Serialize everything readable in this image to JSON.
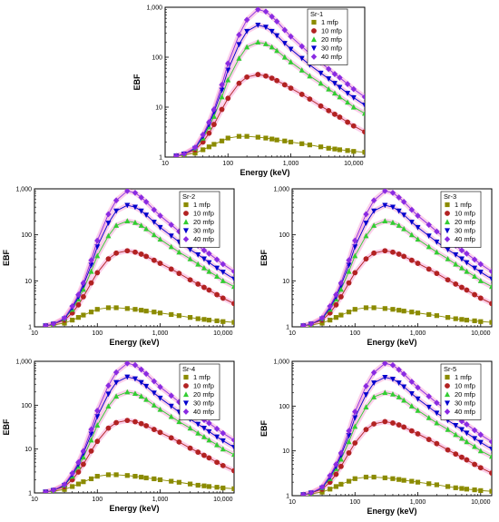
{
  "chart_data": [
    {
      "type": "line",
      "title": "Sr-1",
      "xlabel": "Energy (keV)",
      "ylabel": "EBF",
      "xscale": "log",
      "yscale": "log",
      "xlim": [
        10,
        15000
      ],
      "ylim": [
        1,
        1000
      ],
      "xticks": [
        "10",
        "100",
        "1,000",
        "10,000"
      ],
      "yticks": [
        "1",
        "10",
        "100",
        "1,000"
      ],
      "legend": "top-right",
      "x": [
        15,
        20,
        30,
        40,
        50,
        60,
        80,
        100,
        150,
        200,
        300,
        400,
        500,
        600,
        800,
        1000,
        1500,
        2000,
        3000,
        4000,
        5000,
        6000,
        8000,
        10000,
        15000
      ],
      "series": [
        {
          "name": "1 mfp",
          "color": "#8b8b00",
          "marker": "square",
          "values": [
            1.05,
            1.1,
            1.2,
            1.4,
            1.6,
            1.8,
            2.1,
            2.4,
            2.6,
            2.6,
            2.5,
            2.4,
            2.3,
            2.2,
            2.1,
            2.0,
            1.85,
            1.75,
            1.6,
            1.5,
            1.45,
            1.4,
            1.35,
            1.3,
            1.25
          ]
        },
        {
          "name": "10 mfp",
          "color": "#b22222",
          "marker": "circle",
          "values": [
            1.05,
            1.15,
            1.4,
            2.0,
            3.0,
            4.5,
            9.0,
            15,
            30,
            40,
            45,
            42,
            38,
            34,
            28,
            24,
            18,
            14.5,
            10.5,
            8.5,
            7.2,
            6.3,
            5.0,
            4.2,
            3.2
          ]
        },
        {
          "name": "20 mfp",
          "color": "#32cd32",
          "marker": "triangle-up",
          "values": [
            1.05,
            1.15,
            1.5,
            2.4,
            4.0,
            6.5,
            16,
            35,
            95,
            160,
            200,
            185,
            160,
            135,
            100,
            80,
            55,
            42,
            30,
            23,
            19,
            16,
            12.5,
            10,
            7.5
          ]
        },
        {
          "name": "30 mfp",
          "color": "#0000cd",
          "marker": "triangle-down",
          "values": [
            1.05,
            1.15,
            1.5,
            2.6,
            4.5,
            8.0,
            22,
            55,
            180,
            330,
            440,
            400,
            330,
            270,
            190,
            145,
            95,
            70,
            48,
            37,
            30,
            25,
            19,
            15.5,
            11
          ]
        },
        {
          "name": "40 mfp",
          "color": "#8a2be2",
          "marker": "diamond",
          "values": [
            1.05,
            1.15,
            1.55,
            2.8,
            5.0,
            9.0,
            28,
            75,
            280,
            560,
            900,
            820,
            650,
            520,
            350,
            260,
            165,
            118,
            78,
            58,
            46,
            39,
            29,
            23,
            16
          ]
        }
      ]
    },
    {
      "type": "line",
      "title": "Sr-2",
      "xlabel": "Energy (keV)",
      "ylabel": "EBF",
      "xscale": "log",
      "yscale": "log",
      "xlim": [
        10,
        15000
      ],
      "ylim": [
        1,
        1000
      ],
      "xticks": [
        "10",
        "100",
        "1,000",
        "10,000"
      ],
      "yticks": [
        "1",
        "10",
        "100",
        "1,000"
      ],
      "legend": "top-right",
      "x": [
        15,
        20,
        30,
        40,
        50,
        60,
        80,
        100,
        150,
        200,
        300,
        400,
        500,
        600,
        800,
        1000,
        1500,
        2000,
        3000,
        4000,
        5000,
        6000,
        8000,
        10000,
        15000
      ],
      "series": [
        {
          "name": "1 mfp",
          "color": "#8b8b00",
          "marker": "square",
          "values": [
            1.05,
            1.1,
            1.2,
            1.4,
            1.6,
            1.8,
            2.1,
            2.4,
            2.6,
            2.6,
            2.5,
            2.4,
            2.3,
            2.2,
            2.1,
            2.0,
            1.85,
            1.75,
            1.6,
            1.5,
            1.45,
            1.4,
            1.35,
            1.3,
            1.25
          ]
        },
        {
          "name": "10 mfp",
          "color": "#b22222",
          "marker": "circle",
          "values": [
            1.05,
            1.15,
            1.4,
            2.0,
            3.0,
            4.5,
            9.0,
            15,
            30,
            40,
            45,
            42,
            38,
            34,
            28,
            24,
            18,
            14.5,
            10.5,
            8.5,
            7.2,
            6.3,
            5.0,
            4.2,
            3.2
          ]
        },
        {
          "name": "20 mfp",
          "color": "#32cd32",
          "marker": "triangle-up",
          "values": [
            1.05,
            1.15,
            1.5,
            2.4,
            4.0,
            6.5,
            16,
            35,
            95,
            160,
            200,
            185,
            160,
            135,
            100,
            80,
            55,
            42,
            30,
            23,
            19,
            16,
            12.5,
            10,
            7.5
          ]
        },
        {
          "name": "30 mfp",
          "color": "#0000cd",
          "marker": "triangle-down",
          "values": [
            1.05,
            1.15,
            1.5,
            2.6,
            4.5,
            8.0,
            22,
            55,
            180,
            330,
            440,
            400,
            330,
            270,
            190,
            145,
            95,
            70,
            48,
            37,
            30,
            25,
            19,
            15.5,
            11
          ]
        },
        {
          "name": "40 mfp",
          "color": "#8a2be2",
          "marker": "diamond",
          "values": [
            1.05,
            1.15,
            1.55,
            2.8,
            5.0,
            9.0,
            28,
            75,
            280,
            560,
            900,
            820,
            650,
            520,
            350,
            260,
            165,
            118,
            78,
            58,
            46,
            39,
            29,
            23,
            16
          ]
        }
      ]
    },
    {
      "type": "line",
      "title": "Sr-3",
      "xlabel": "Energy (keV)",
      "ylabel": "EBF",
      "xscale": "log",
      "yscale": "log",
      "xlim": [
        10,
        15000
      ],
      "ylim": [
        1,
        1000
      ],
      "xticks": [
        "10",
        "100",
        "1,000",
        "10,000"
      ],
      "yticks": [
        "1",
        "10",
        "100",
        "1,000"
      ],
      "legend": "top-right",
      "x": [
        15,
        20,
        30,
        40,
        50,
        60,
        80,
        100,
        150,
        200,
        300,
        400,
        500,
        600,
        800,
        1000,
        1500,
        2000,
        3000,
        4000,
        5000,
        6000,
        8000,
        10000,
        15000
      ],
      "series": [
        {
          "name": "1 mfp",
          "color": "#8b8b00",
          "marker": "square",
          "values": [
            1.05,
            1.1,
            1.2,
            1.4,
            1.6,
            1.8,
            2.1,
            2.4,
            2.6,
            2.6,
            2.5,
            2.4,
            2.3,
            2.2,
            2.1,
            2.0,
            1.85,
            1.75,
            1.6,
            1.5,
            1.45,
            1.4,
            1.35,
            1.3,
            1.25
          ]
        },
        {
          "name": "10 mfp",
          "color": "#b22222",
          "marker": "circle",
          "values": [
            1.05,
            1.15,
            1.4,
            2.0,
            3.0,
            4.5,
            9.0,
            15,
            30,
            40,
            45,
            42,
            38,
            34,
            28,
            24,
            18,
            14.5,
            10.5,
            8.5,
            7.2,
            6.3,
            5.0,
            4.2,
            3.2
          ]
        },
        {
          "name": "20 mfp",
          "color": "#32cd32",
          "marker": "triangle-up",
          "values": [
            1.05,
            1.15,
            1.5,
            2.4,
            4.0,
            6.5,
            16,
            35,
            95,
            160,
            200,
            185,
            160,
            135,
            100,
            80,
            55,
            42,
            30,
            23,
            19,
            16,
            12.5,
            10,
            7.5
          ]
        },
        {
          "name": "30 mfp",
          "color": "#0000cd",
          "marker": "triangle-down",
          "values": [
            1.05,
            1.15,
            1.5,
            2.6,
            4.5,
            8.0,
            22,
            55,
            180,
            330,
            440,
            400,
            330,
            270,
            190,
            145,
            95,
            70,
            48,
            37,
            30,
            25,
            19,
            15.5,
            11
          ]
        },
        {
          "name": "40 mfp",
          "color": "#8a2be2",
          "marker": "diamond",
          "values": [
            1.05,
            1.15,
            1.55,
            2.8,
            5.0,
            9.0,
            28,
            75,
            280,
            560,
            900,
            820,
            650,
            520,
            350,
            260,
            165,
            118,
            78,
            58,
            46,
            39,
            29,
            23,
            16
          ]
        }
      ]
    },
    {
      "type": "line",
      "title": "Sr-4",
      "xlabel": "Energy (keV)",
      "ylabel": "EBF",
      "xscale": "log",
      "yscale": "log",
      "xlim": [
        10,
        15000
      ],
      "ylim": [
        1,
        1000
      ],
      "xticks": [
        "10",
        "100",
        "1,000",
        "10,000"
      ],
      "yticks": [
        "1",
        "10",
        "100",
        "1,000"
      ],
      "legend": "top-right",
      "x": [
        15,
        20,
        30,
        40,
        50,
        60,
        80,
        100,
        150,
        200,
        300,
        400,
        500,
        600,
        800,
        1000,
        1500,
        2000,
        3000,
        4000,
        5000,
        6000,
        8000,
        10000,
        15000
      ],
      "series": [
        {
          "name": "1 mfp",
          "color": "#8b8b00",
          "marker": "square",
          "values": [
            1.05,
            1.1,
            1.2,
            1.4,
            1.6,
            1.8,
            2.1,
            2.4,
            2.6,
            2.6,
            2.5,
            2.4,
            2.3,
            2.2,
            2.1,
            2.0,
            1.85,
            1.75,
            1.6,
            1.5,
            1.45,
            1.4,
            1.35,
            1.3,
            1.25
          ]
        },
        {
          "name": "10 mfp",
          "color": "#b22222",
          "marker": "circle",
          "values": [
            1.05,
            1.15,
            1.4,
            2.0,
            3.0,
            4.5,
            9.0,
            15,
            30,
            40,
            45,
            42,
            38,
            34,
            28,
            24,
            18,
            14.5,
            10.5,
            8.5,
            7.2,
            6.3,
            5.0,
            4.2,
            3.2
          ]
        },
        {
          "name": "20 mfp",
          "color": "#32cd32",
          "marker": "triangle-up",
          "values": [
            1.05,
            1.15,
            1.5,
            2.4,
            4.0,
            6.5,
            16,
            35,
            95,
            160,
            200,
            185,
            160,
            135,
            100,
            80,
            55,
            42,
            30,
            23,
            19,
            16,
            12.5,
            10,
            7.5
          ]
        },
        {
          "name": "30 mfp",
          "color": "#0000cd",
          "marker": "triangle-down",
          "values": [
            1.05,
            1.15,
            1.5,
            2.6,
            4.5,
            8.0,
            22,
            55,
            180,
            330,
            440,
            400,
            330,
            270,
            190,
            145,
            95,
            70,
            48,
            37,
            30,
            25,
            19,
            15.5,
            11
          ]
        },
        {
          "name": "40 mfp",
          "color": "#8a2be2",
          "marker": "diamond",
          "values": [
            1.05,
            1.15,
            1.55,
            2.8,
            5.0,
            9.0,
            28,
            75,
            280,
            560,
            900,
            820,
            650,
            520,
            350,
            260,
            165,
            118,
            78,
            58,
            46,
            39,
            29,
            23,
            16
          ]
        }
      ]
    },
    {
      "type": "line",
      "title": "Sr-5",
      "xlabel": "Energy (keV)",
      "ylabel": "EBF",
      "xscale": "log",
      "yscale": "log",
      "xlim": [
        10,
        15000
      ],
      "ylim": [
        1,
        1000
      ],
      "xticks": [
        "10",
        "100",
        "1,000",
        "10,000"
      ],
      "yticks": [
        "1",
        "10",
        "100",
        "1,000"
      ],
      "legend": "top-right",
      "x": [
        15,
        20,
        30,
        40,
        50,
        60,
        80,
        100,
        150,
        200,
        300,
        400,
        500,
        600,
        800,
        1000,
        1500,
        2000,
        3000,
        4000,
        5000,
        6000,
        8000,
        10000,
        15000
      ],
      "series": [
        {
          "name": "1 mfp",
          "color": "#8b8b00",
          "marker": "square",
          "values": [
            1.05,
            1.1,
            1.2,
            1.4,
            1.6,
            1.8,
            2.1,
            2.4,
            2.6,
            2.6,
            2.5,
            2.4,
            2.3,
            2.2,
            2.1,
            2.0,
            1.85,
            1.75,
            1.6,
            1.5,
            1.45,
            1.4,
            1.35,
            1.3,
            1.25
          ]
        },
        {
          "name": "10 mfp",
          "color": "#b22222",
          "marker": "circle",
          "values": [
            1.05,
            1.15,
            1.4,
            2.0,
            3.0,
            4.5,
            9.0,
            15,
            30,
            40,
            45,
            42,
            38,
            34,
            28,
            24,
            18,
            14.5,
            10.5,
            8.5,
            7.2,
            6.3,
            5.0,
            4.2,
            3.2
          ]
        },
        {
          "name": "20 mfp",
          "color": "#32cd32",
          "marker": "triangle-up",
          "values": [
            1.05,
            1.15,
            1.5,
            2.4,
            4.0,
            6.5,
            16,
            35,
            95,
            160,
            200,
            185,
            160,
            135,
            100,
            80,
            55,
            42,
            30,
            23,
            19,
            16,
            12.5,
            10,
            7.5
          ]
        },
        {
          "name": "30 mfp",
          "color": "#0000cd",
          "marker": "triangle-down",
          "values": [
            1.05,
            1.15,
            1.5,
            2.6,
            4.5,
            8.0,
            22,
            55,
            180,
            330,
            440,
            400,
            330,
            270,
            190,
            145,
            95,
            70,
            48,
            37,
            30,
            25,
            19,
            15.5,
            11
          ]
        },
        {
          "name": "40 mfp",
          "color": "#8a2be2",
          "marker": "diamond",
          "values": [
            1.05,
            1.15,
            1.55,
            2.8,
            5.0,
            9.0,
            28,
            75,
            280,
            560,
            900,
            820,
            650,
            520,
            350,
            260,
            165,
            118,
            78,
            58,
            46,
            39,
            29,
            23,
            16
          ]
        }
      ]
    }
  ]
}
